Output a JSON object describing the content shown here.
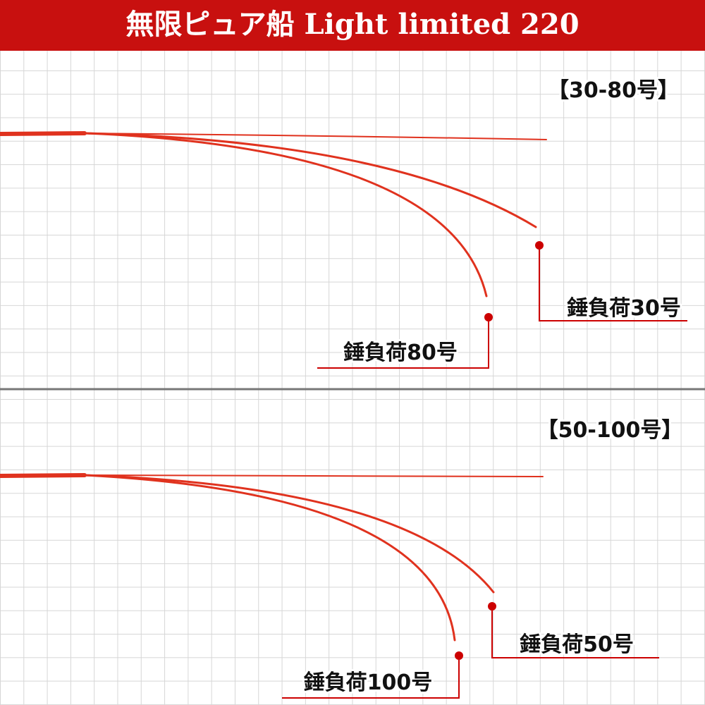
{
  "header": {
    "title": "無限ピュア船 Light limited 220"
  },
  "panels": [
    {
      "label": "【30-80号】",
      "callouts": [
        {
          "label": "錘負荷30号"
        },
        {
          "label": "錘負荷80号"
        }
      ]
    },
    {
      "label": "【50-100号】",
      "callouts": [
        {
          "label": "錘負荷50号"
        },
        {
          "label": "錘負荷100号"
        }
      ]
    }
  ]
}
